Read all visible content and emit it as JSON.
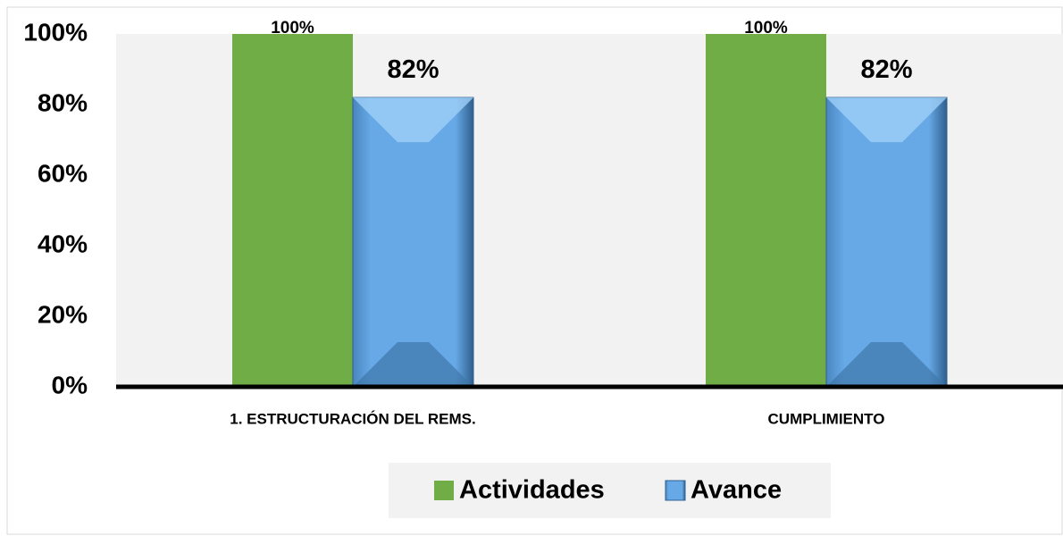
{
  "chart_data": {
    "type": "bar",
    "categories": [
      "1. ESTRUCTURACIÓN DEL REMS.",
      "CUMPLIMIENTO"
    ],
    "series": [
      {
        "name": "Actividades",
        "color": "#70ad47",
        "values": [
          100,
          100
        ],
        "value_labels": [
          "100%",
          "100%"
        ]
      },
      {
        "name": "Avance",
        "color": "#5fa3e0",
        "values": [
          82,
          82
        ],
        "value_labels": [
          "82%",
          "82%"
        ]
      }
    ],
    "ylim": [
      0,
      100
    ],
    "yticks": [
      {
        "value": 0,
        "label": "0%"
      },
      {
        "value": 20,
        "label": "20%"
      },
      {
        "value": 40,
        "label": "40%"
      },
      {
        "value": 60,
        "label": "60%"
      },
      {
        "value": 80,
        "label": "80%"
      },
      {
        "value": 100,
        "label": "100%"
      }
    ],
    "legend": "bottom"
  }
}
